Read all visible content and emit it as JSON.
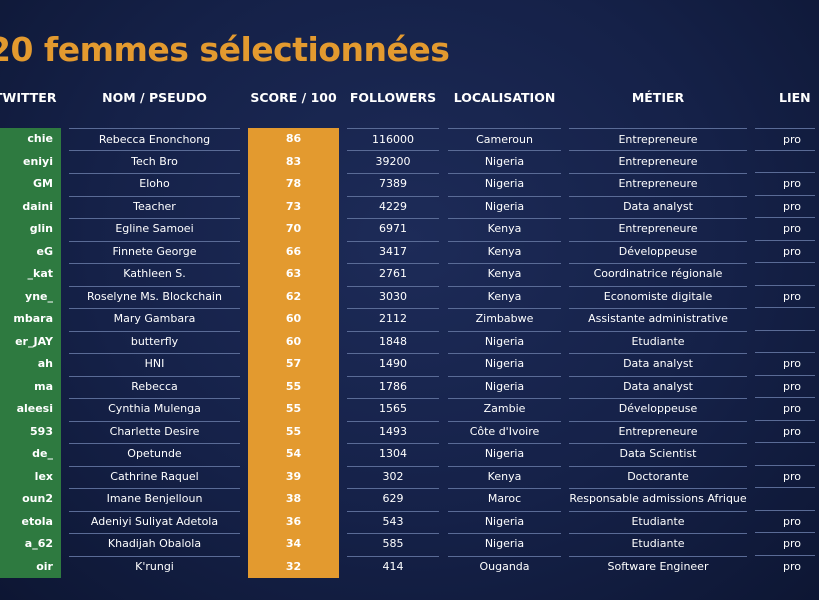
{
  "title": "20 femmes sélectionnées",
  "colors": {
    "accent": "#e39a2f",
    "twitter_col": "#2e7a40",
    "background": "#152148"
  },
  "headers": {
    "twitter": "TWITTER",
    "name": "NOM / PSEUDO",
    "score": "SCORE / 100",
    "followers": "FOLLOWERS",
    "location": "LOCALISATION",
    "job": "MÉTIER",
    "link": "LIEN"
  },
  "rows": [
    {
      "twitter": "chie",
      "name": "Rebecca Enonchong",
      "score": "86",
      "followers": "116000",
      "location": "Cameroun",
      "job": "Entrepreneure",
      "link": "pro"
    },
    {
      "twitter": "eniyi",
      "name": "Tech Bro",
      "score": "83",
      "followers": "39200",
      "location": "Nigeria",
      "job": "Entrepreneure",
      "link": ""
    },
    {
      "twitter": "GM",
      "name": "Eloho",
      "score": "78",
      "followers": "7389",
      "location": "Nigeria",
      "job": "Entrepreneure",
      "link": "pro"
    },
    {
      "twitter": "daini",
      "name": "Teacher",
      "score": "73",
      "followers": "4229",
      "location": "Nigeria",
      "job": "Data analyst",
      "link": "pro"
    },
    {
      "twitter": "glin",
      "name": "Egline Samoei",
      "score": "70",
      "followers": "6971",
      "location": "Kenya",
      "job": "Entrepreneure",
      "link": "pro"
    },
    {
      "twitter": "eG",
      "name": "Finnete George",
      "score": "66",
      "followers": "3417",
      "location": "Kenya",
      "job": "Développeuse",
      "link": "pro"
    },
    {
      "twitter": "_kat",
      "name": "Kathleen S.",
      "score": "63",
      "followers": "2761",
      "location": "Kenya",
      "job": "Coordinatrice régionale",
      "link": ""
    },
    {
      "twitter": "yne_",
      "name": "Roselyne Ms. Blockchain",
      "score": "62",
      "followers": "3030",
      "location": "Kenya",
      "job": "Economiste digitale",
      "link": "pro"
    },
    {
      "twitter": "mbara",
      "name": "Mary Gambara",
      "score": "60",
      "followers": "2112",
      "location": "Zimbabwe",
      "job": "Assistante administrative",
      "link": ""
    },
    {
      "twitter": "er_JAY",
      "name": "butterfly",
      "score": "60",
      "followers": "1848",
      "location": "Nigeria",
      "job": "Etudiante",
      "link": ""
    },
    {
      "twitter": "ah",
      "name": "HNI",
      "score": "57",
      "followers": "1490",
      "location": "Nigeria",
      "job": "Data analyst",
      "link": "pro"
    },
    {
      "twitter": "ma",
      "name": "Rebecca",
      "score": "55",
      "followers": "1786",
      "location": "Nigeria",
      "job": "Data analyst",
      "link": "pro"
    },
    {
      "twitter": "aleesi",
      "name": "Cynthia Mulenga",
      "score": "55",
      "followers": "1565",
      "location": "Zambie",
      "job": "Développeuse",
      "link": "pro"
    },
    {
      "twitter": "593",
      "name": "Charlette Desire",
      "score": "55",
      "followers": "1493",
      "location": "Côte d'Ivoire",
      "job": "Entrepreneure",
      "link": "pro"
    },
    {
      "twitter": "de_",
      "name": "Opetunde",
      "score": "54",
      "followers": "1304",
      "location": "Nigeria",
      "job": "Data Scientist",
      "link": ""
    },
    {
      "twitter": "lex",
      "name": "Cathrine Raquel",
      "score": "39",
      "followers": "302",
      "location": "Kenya",
      "job": "Doctorante",
      "link": "pro"
    },
    {
      "twitter": "oun2",
      "name": "Imane Benjelloun",
      "score": "38",
      "followers": "629",
      "location": "Maroc",
      "job": "Responsable admissions Afrique",
      "link": ""
    },
    {
      "twitter": "etola",
      "name": "Adeniyi Suliyat Adetola",
      "score": "36",
      "followers": "543",
      "location": "Nigeria",
      "job": "Etudiante",
      "link": "pro"
    },
    {
      "twitter": "a_62",
      "name": "Khadijah Obalola",
      "score": "34",
      "followers": "585",
      "location": "Nigeria",
      "job": "Etudiante",
      "link": "pro"
    },
    {
      "twitter": "oir",
      "name": "K'rungi",
      "score": "32",
      "followers": "414",
      "location": "Ouganda",
      "job": "Software Engineer",
      "link": "pro"
    }
  ]
}
